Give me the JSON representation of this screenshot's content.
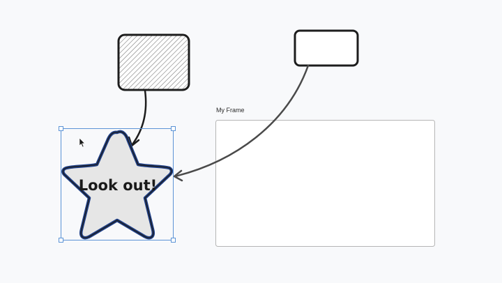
{
  "canvas": {
    "frame": {
      "label": "My Frame"
    },
    "star": {
      "text": "Look out!"
    },
    "shapes": {
      "hatched_rectangle": "rectangle with hatch fill",
      "plain_rectangle": "rectangle"
    },
    "colors": {
      "background": "#f8f9fb",
      "stroke": "#1d1d1d",
      "star_fill": "#e6e6e6",
      "star_outline": "#1f3f86",
      "selection": "#5b93d6",
      "frame_border": "#b5b5b5"
    },
    "icons": [
      "cursor-icon",
      "arrow-head-icon"
    ]
  }
}
